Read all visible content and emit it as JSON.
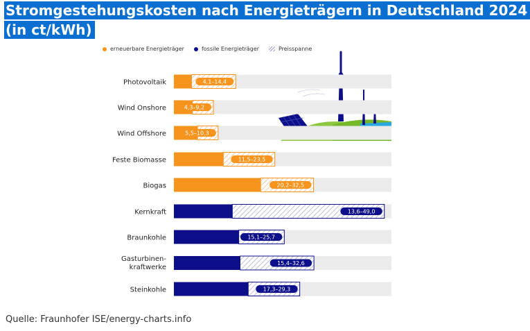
{
  "title": {
    "line1": "Stromgestehungskosten nach Energieträgern in Deutschland 2024",
    "line2": "(in ct/kWh)"
  },
  "legend": {
    "renewable": "erneuerbare Energieträger",
    "fossil": "fossile Energieträger",
    "range": "Preisspanne"
  },
  "colors": {
    "renewable": "#f7941d",
    "fossil": "#0d0f8a",
    "title_bg": "#0a6fd1",
    "track": "#ebebeb"
  },
  "source": "Quelle: Fraunhofer ISE/energy-charts.info",
  "chart_data": {
    "type": "bar",
    "orientation": "horizontal",
    "xlim": [
      0,
      50
    ],
    "categories": [
      "Photovoltaik",
      "Wind Onshore",
      "Wind Offshore",
      "Feste Biomasse",
      "Biogas",
      "Kernkraft",
      "Braunkohle",
      "Gasturbinen-kraftwerke",
      "Steinkohle"
    ],
    "series": [
      {
        "name": "erneuerbare Energieträger",
        "points": [
          {
            "category": "Photovoltaik",
            "min": 4.1,
            "max": 14.4,
            "label": "4,1–14,4"
          },
          {
            "category": "Wind Onshore",
            "min": 4.3,
            "max": 9.2,
            "label": "4,3–9,2"
          },
          {
            "category": "Wind Offshore",
            "min": 5.5,
            "max": 10.3,
            "label": "5,5–10,3"
          },
          {
            "category": "Feste Biomasse",
            "min": 11.5,
            "max": 23.5,
            "label": "11,5–23,5"
          },
          {
            "category": "Biogas",
            "min": 20.2,
            "max": 32.5,
            "label": "20,2–32,5"
          }
        ]
      },
      {
        "name": "fossile Energieträger",
        "points": [
          {
            "category": "Kernkraft",
            "min": 13.6,
            "max": 49.0,
            "label": "13,6–49,0"
          },
          {
            "category": "Braunkohle",
            "min": 15.1,
            "max": 25.7,
            "label": "15,1–25,7"
          },
          {
            "category": "Gasturbinen-kraftwerke",
            "min": 15.4,
            "max": 32.6,
            "label": "15,4–32,6"
          },
          {
            "category": "Steinkohle",
            "min": 17.3,
            "max": 29.3,
            "label": "17,3–29,3"
          }
        ]
      }
    ]
  }
}
